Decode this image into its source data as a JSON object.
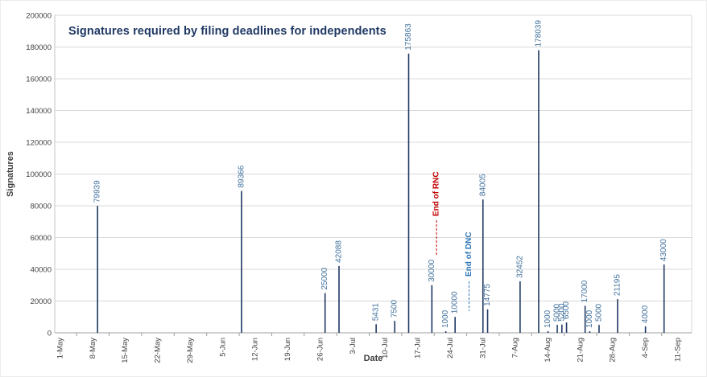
{
  "title": "Signatures required by filing deadlines for independents",
  "colors": {
    "bar": "#1F3864",
    "value_label": "#41719C",
    "title": "#1F3864",
    "grid": "#D9D9D9",
    "axis_line": "#9E9E9E",
    "plot_border_left": "#C6C6C6",
    "plot_border_right": "#D9D9D9",
    "tick_text": "#404040",
    "axis_title_text": "#404040",
    "rnc": "#C00000",
    "dnc": "#2E75B6"
  },
  "chart_data": {
    "type": "bar",
    "title": "Signatures required by filing deadlines for independents",
    "xlabel": "Date",
    "ylabel": "Signatures",
    "ylim": [
      0,
      200000
    ],
    "ytick_interval": 20000,
    "grid": "horizontal",
    "legend": "none",
    "y_tick_labels": [
      "0",
      "20000",
      "40000",
      "60000",
      "80000",
      "100000",
      "120000",
      "140000",
      "160000",
      "180000",
      "200000"
    ],
    "x_tick_labels": [
      "1-May",
      "8-May",
      "15-May",
      "22-May",
      "29-May",
      "5-Jun",
      "12-Jun",
      "19-Jun",
      "26-Jun",
      "3-Jul",
      "10-Jul",
      "17-Jul",
      "24-Jul",
      "31-Jul",
      "7-Aug",
      "14-Aug",
      "21-Aug",
      "28-Aug",
      "4-Sep",
      "11-Sep"
    ],
    "points": [
      {
        "date": "9-May",
        "value": 79939
      },
      {
        "date": "9-Jun",
        "value": 89366
      },
      {
        "date": "27-Jun",
        "value": 25000
      },
      {
        "date": "30-Jun",
        "value": 42088
      },
      {
        "date": "8-Jul",
        "value": 5431
      },
      {
        "date": "12-Jul",
        "value": 7500
      },
      {
        "date": "15-Jul",
        "value": 175863
      },
      {
        "date": "20-Jul",
        "value": 30000
      },
      {
        "date": "23-Jul",
        "value": 1000
      },
      {
        "date": "25-Jul",
        "value": 10000
      },
      {
        "date": "31-Jul",
        "value": 84005
      },
      {
        "date": "1-Aug",
        "value": 14775
      },
      {
        "date": "8-Aug",
        "value": 32452
      },
      {
        "date": "12-Aug",
        "value": 178039
      },
      {
        "date": "14-Aug",
        "value": 1000
      },
      {
        "date": "16-Aug",
        "value": 5000
      },
      {
        "date": "17-Aug",
        "value": 5200
      },
      {
        "date": "18-Aug",
        "value": 6500
      },
      {
        "date": "22-Aug",
        "value": 17000
      },
      {
        "date": "23-Aug",
        "value": 1000
      },
      {
        "date": "25-Aug",
        "value": 5000
      },
      {
        "date": "29-Aug",
        "value": 21195
      },
      {
        "date": "4-Sep",
        "value": 4000
      },
      {
        "date": "8-Sep",
        "value": 43000
      }
    ],
    "annotations": [
      {
        "label": "End of RNC",
        "date": "21-Jul",
        "color_key": "rnc"
      },
      {
        "label": "End of DNC",
        "date": "28-Jul",
        "color_key": "dnc"
      }
    ]
  }
}
